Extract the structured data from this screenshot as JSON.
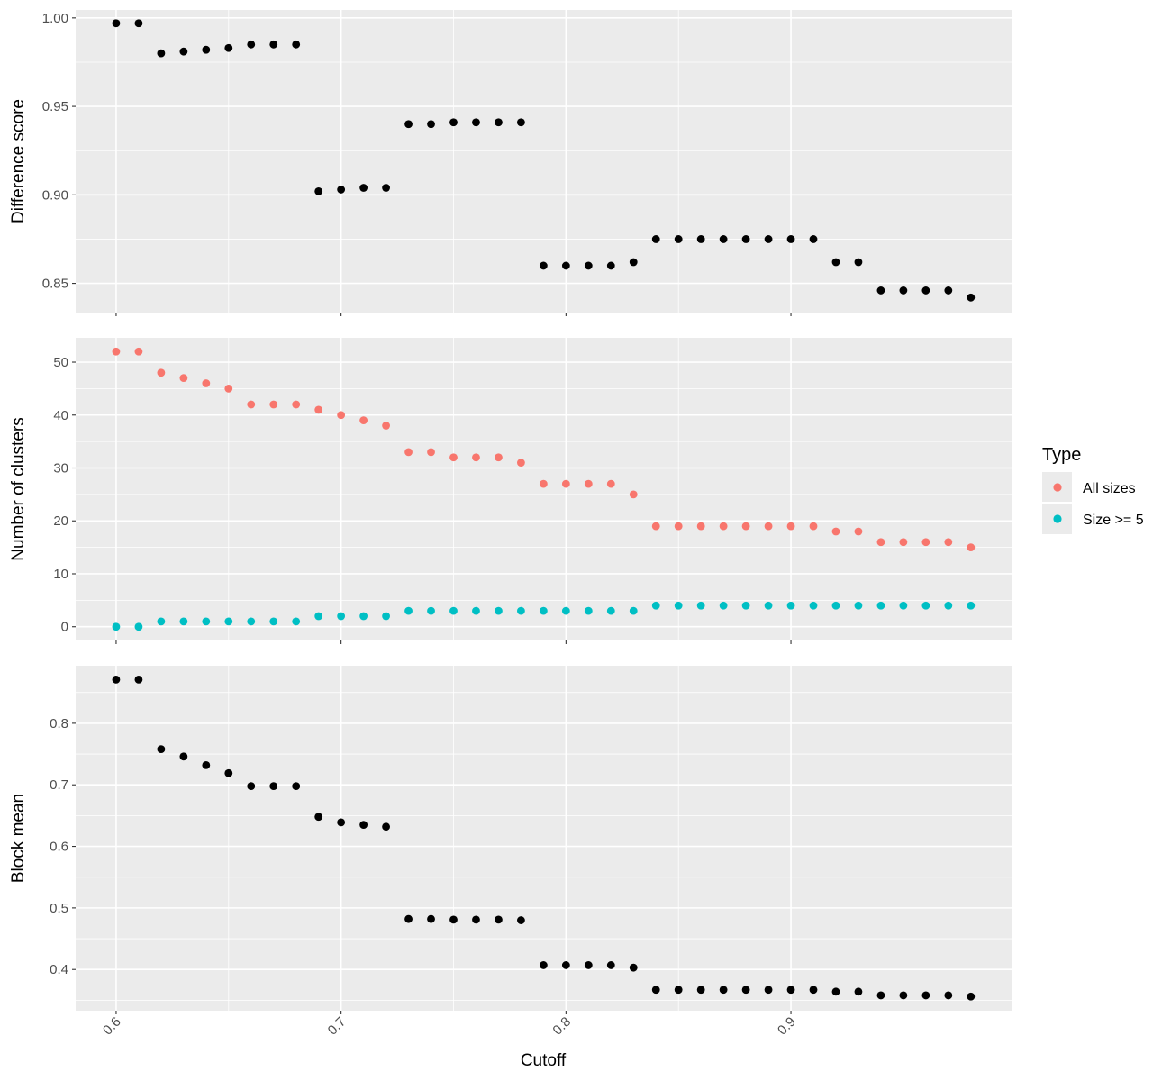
{
  "chart_data": {
    "type": "scatter",
    "xlabel": "Cutoff",
    "x_ticks": [
      "0.6",
      "0.7",
      "0.8",
      "0.9"
    ],
    "x_tick_values": [
      0.6,
      0.7,
      0.8,
      0.9
    ],
    "xlim": [
      0.582,
      0.9985
    ],
    "x": [
      0.6,
      0.61,
      0.62,
      0.63,
      0.64,
      0.65,
      0.66,
      0.67,
      0.68,
      0.69,
      0.7,
      0.71,
      0.72,
      0.73,
      0.74,
      0.75,
      0.76,
      0.77,
      0.78,
      0.79,
      0.8,
      0.81,
      0.82,
      0.83,
      0.84,
      0.85,
      0.86,
      0.87,
      0.88,
      0.89,
      0.9,
      0.91,
      0.92,
      0.93,
      0.94,
      0.95,
      0.96,
      0.97,
      0.98
    ],
    "grid": true,
    "legend": {
      "position": "right",
      "title": "Type",
      "items": [
        {
          "label": "All sizes",
          "color": "#F8766D"
        },
        {
          "label": "Size >= 5",
          "color": "#00BFC4"
        }
      ]
    },
    "panels": [
      {
        "ylabel": "Difference score",
        "ylim": [
          0.8335,
          1.0045
        ],
        "y_ticks": [
          "0.85",
          "0.90",
          "0.95",
          "1.00"
        ],
        "y_tick_values": [
          0.85,
          0.9,
          0.95,
          1.0
        ],
        "series": [
          {
            "color": "#000000",
            "values": [
              0.997,
              0.997,
              0.98,
              0.981,
              0.982,
              0.983,
              0.985,
              0.985,
              0.985,
              0.902,
              0.903,
              0.904,
              0.904,
              0.94,
              0.94,
              0.941,
              0.941,
              0.941,
              0.941,
              0.86,
              0.86,
              0.86,
              0.86,
              0.862,
              0.875,
              0.875,
              0.875,
              0.875,
              0.875,
              0.875,
              0.875,
              0.875,
              0.862,
              0.862,
              0.846,
              0.846,
              0.846,
              0.846,
              0.842
            ]
          }
        ]
      },
      {
        "ylabel": "Number of clusters",
        "ylim": [
          -2.6,
          54.6
        ],
        "y_ticks": [
          "0",
          "10",
          "20",
          "30",
          "40",
          "50"
        ],
        "y_tick_values": [
          0,
          10,
          20,
          30,
          40,
          50
        ],
        "series": [
          {
            "name": "All sizes",
            "color": "#F8766D",
            "values": [
              52,
              52,
              48,
              47,
              46,
              45,
              42,
              42,
              42,
              41,
              40,
              39,
              38,
              33,
              33,
              32,
              32,
              32,
              31,
              27,
              27,
              27,
              27,
              25,
              19,
              19,
              19,
              19,
              19,
              19,
              19,
              19,
              18,
              18,
              16,
              16,
              16,
              16,
              15
            ]
          },
          {
            "name": "Size >= 5",
            "color": "#00BFC4",
            "values": [
              0,
              0,
              1,
              1,
              1,
              1,
              1,
              1,
              1,
              2,
              2,
              2,
              2,
              3,
              3,
              3,
              3,
              3,
              3,
              3,
              3,
              3,
              3,
              3,
              4,
              4,
              4,
              4,
              4,
              4,
              4,
              4,
              4,
              4,
              4,
              4,
              4,
              4,
              4
            ]
          }
        ]
      },
      {
        "ylabel": "Block mean",
        "ylim": [
          0.333,
          0.8935
        ],
        "y_ticks": [
          "0.4",
          "0.5",
          "0.6",
          "0.7",
          "0.8"
        ],
        "y_tick_values": [
          0.4,
          0.5,
          0.6,
          0.7,
          0.8
        ],
        "series": [
          {
            "color": "#000000",
            "values": [
              0.871,
              0.871,
              0.758,
              0.746,
              0.732,
              0.719,
              0.698,
              0.698,
              0.698,
              0.648,
              0.639,
              0.635,
              0.632,
              0.482,
              0.482,
              0.481,
              0.481,
              0.481,
              0.48,
              0.407,
              0.407,
              0.407,
              0.407,
              0.403,
              0.367,
              0.367,
              0.367,
              0.367,
              0.367,
              0.367,
              0.367,
              0.367,
              0.364,
              0.364,
              0.358,
              0.358,
              0.358,
              0.358,
              0.356
            ]
          }
        ]
      }
    ]
  }
}
